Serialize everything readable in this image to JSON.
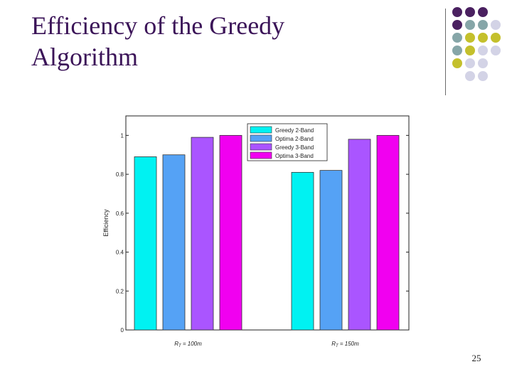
{
  "slide": {
    "title_line1": "Efficiency of the Greedy",
    "title_line2": "Algorithm",
    "page_number": "25"
  },
  "decor": {
    "dot_colors": {
      "purple": "#4a2060",
      "teal": "#86a6a8",
      "olive": "#c4c02c",
      "lavender": "#d3d3e6"
    }
  },
  "chart_data": {
    "type": "bar",
    "ylabel": "Efficiency",
    "ylim": [
      0,
      1.1
    ],
    "yticks": [
      "0",
      "0.2",
      "0.4",
      "0.6",
      "0.8",
      "1"
    ],
    "categories": [
      "R_T = 100m",
      "R_T = 150m"
    ],
    "category_labels": [
      {
        "main": "R",
        "sub": "T",
        "rest": " = 100m"
      },
      {
        "main": "R",
        "sub": "T",
        "rest": " = 150m"
      }
    ],
    "legend_position": "top-right",
    "series": [
      {
        "name": "Greedy 2-Band",
        "color": "#00f2f2",
        "values": [
          0.89,
          0.81
        ]
      },
      {
        "name": "Optima  2-Band",
        "color": "#55a2f5",
        "values": [
          0.9,
          0.82
        ]
      },
      {
        "name": "Greedy 3-Band",
        "color": "#aa55ff",
        "values": [
          0.99,
          0.98
        ]
      },
      {
        "name": "Optima  3-Band",
        "color": "#f100f0",
        "values": [
          1.0,
          1.0
        ]
      }
    ]
  }
}
